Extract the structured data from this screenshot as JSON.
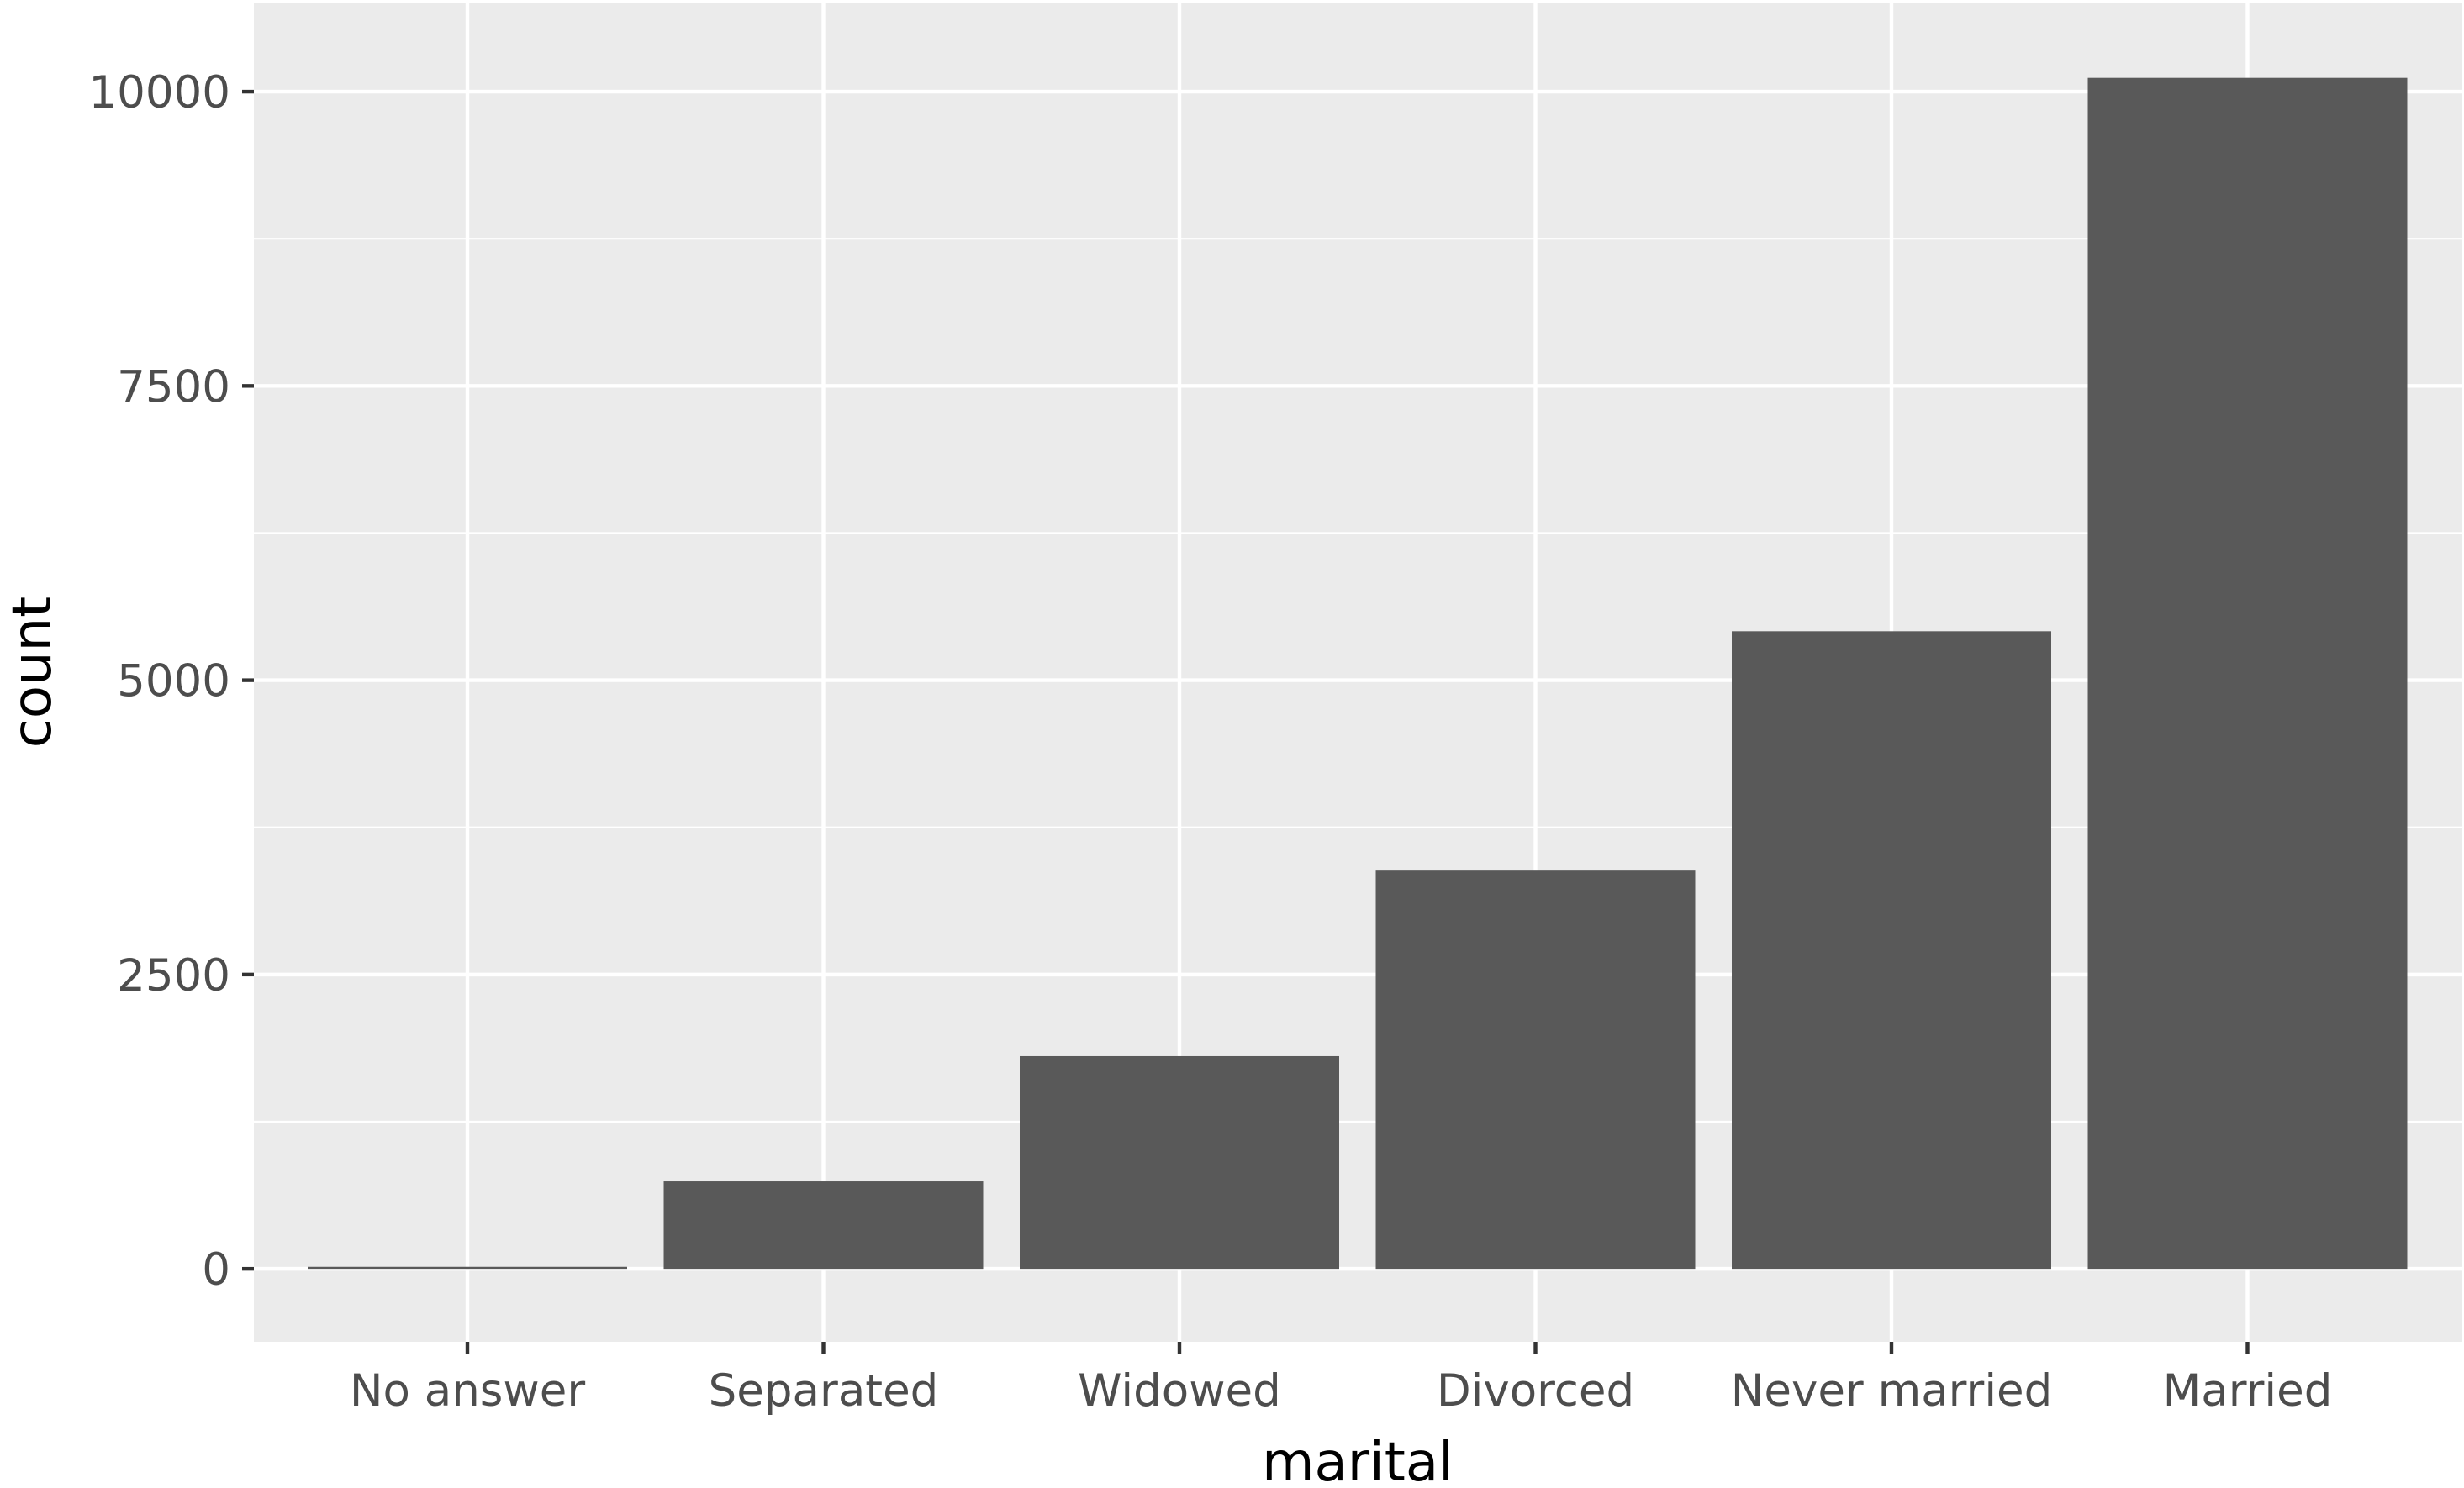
{
  "chart_data": {
    "type": "bar",
    "title": "",
    "xlabel": "marital",
    "ylabel": "count",
    "categories": [
      "No answer",
      "Separated",
      "Widowed",
      "Divorced",
      "Never married",
      "Married"
    ],
    "values": [
      17,
      743,
      1807,
      3383,
      5416,
      10117
    ],
    "ylim": [
      -620,
      10750
    ],
    "yticks": [
      0,
      2500,
      5000,
      7500,
      10000
    ],
    "ytick_labels": [
      "0",
      "2500",
      "5000",
      "7500",
      "10000"
    ],
    "grid": true,
    "legend": "none",
    "colors": {
      "bar": "#595959",
      "panel_background": "#EBEBEB",
      "grid": "#FFFFFF",
      "tick_text": "#4D4D4D",
      "tick_mark": "#333333"
    }
  }
}
